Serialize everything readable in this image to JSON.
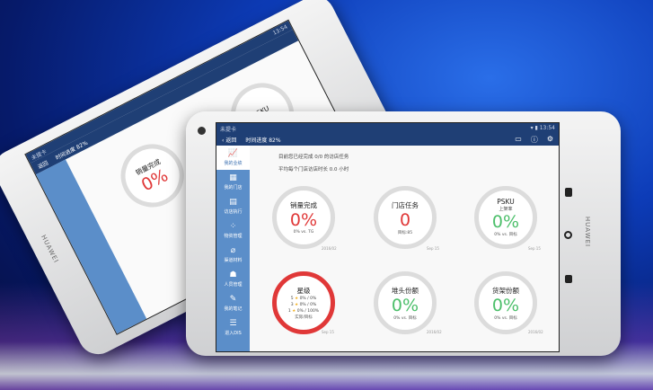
{
  "device": {
    "brand": "HUAWEI"
  },
  "status_bar": {
    "carrier": "未提卡",
    "time": "13:54"
  },
  "nav": {
    "back_label": "返回",
    "time_progress": "时间进度 82%"
  },
  "sidebar": {
    "items": [
      {
        "label": "我的业绩",
        "icon": "chart-icon"
      },
      {
        "label": "我的门店",
        "icon": "store-icon"
      },
      {
        "label": "访店执行",
        "icon": "clipboard-icon"
      },
      {
        "label": "物资管理",
        "icon": "grid-icon"
      },
      {
        "label": "渠道材料",
        "icon": "clip-icon"
      },
      {
        "label": "人员管理",
        "icon": "people-icon"
      },
      {
        "label": "我的笔记",
        "icon": "note-icon"
      },
      {
        "label": "进入DIS",
        "icon": "enter-icon"
      }
    ]
  },
  "summary": {
    "line1": "目前您已经完成 0/0 的访店任务",
    "line2": "平均每个门店访店时长 0.0 小时"
  },
  "cards": [
    {
      "title": "销量完成",
      "subtitle": "",
      "value": "0%",
      "footer": "0% vs. TG",
      "date": "2016/02",
      "value_color": "#e03838"
    },
    {
      "title": "门店任务",
      "subtitle": "",
      "value": "0",
      "footer": "目标:85",
      "date": "Sep 15",
      "value_color": "#e03838"
    },
    {
      "title": "PSKU",
      "subtitle": "上架率",
      "value": "0%",
      "footer": "0% vs. 目标",
      "date": "Sep 15",
      "value_color": "#4cbf6a"
    },
    {
      "title": "星级",
      "stars": [
        {
          "n": "5",
          "text": "0% / 0%"
        },
        {
          "n": "3",
          "text": "0% / 0%"
        },
        {
          "n": "1",
          "text": "0% / 100%"
        }
      ],
      "footer": "实际/目标",
      "date": "Sep 15"
    },
    {
      "title": "堆头份额",
      "subtitle": "",
      "value": "0%",
      "footer": "0% vs. 目标",
      "date": "2016/02",
      "value_color": "#4cbf6a"
    },
    {
      "title": "货架份额",
      "subtitle": "",
      "value": "0%",
      "footer": "0% vs. 目标",
      "date": "2016/02",
      "value_color": "#4cbf6a"
    }
  ]
}
